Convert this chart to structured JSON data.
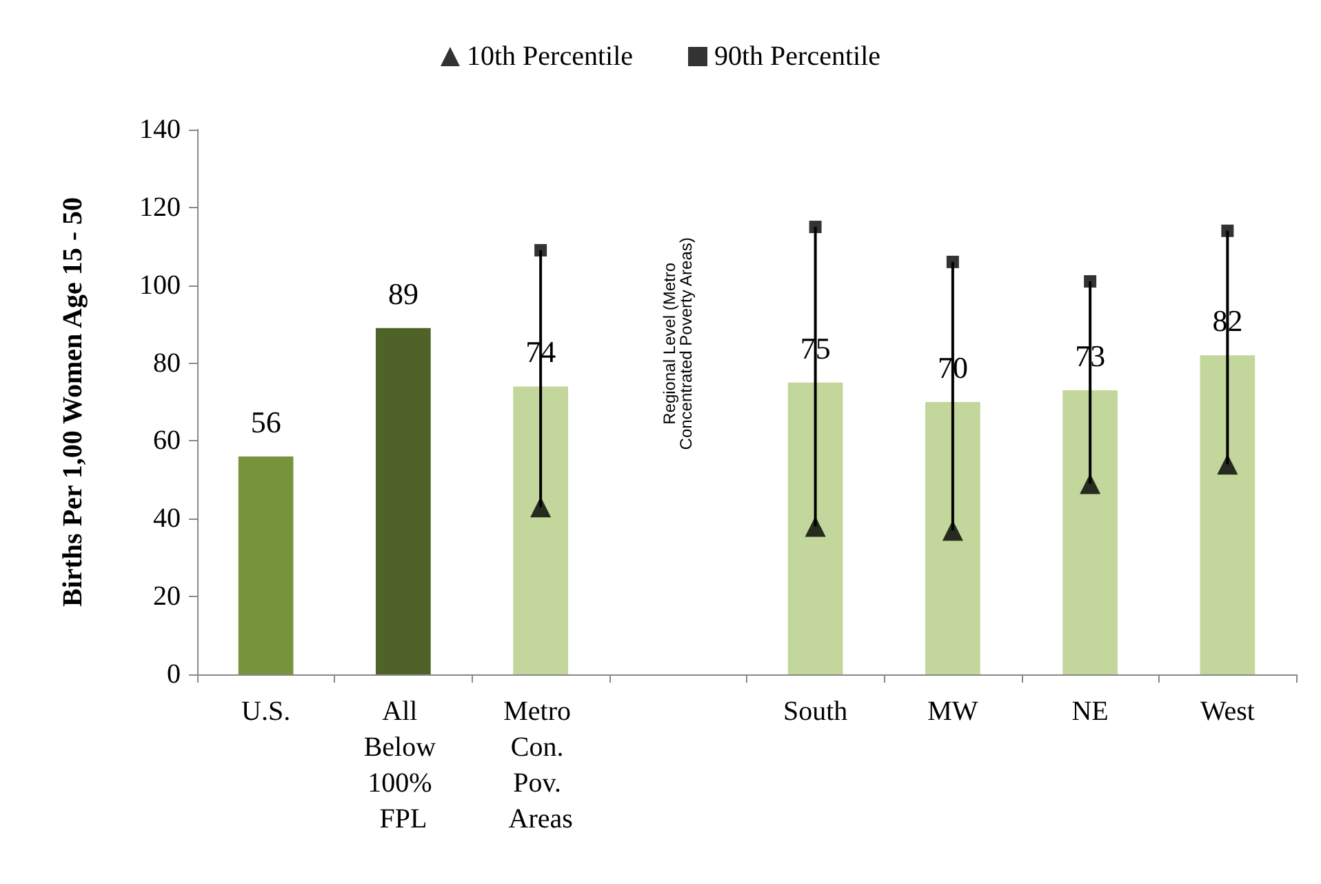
{
  "chart_data": {
    "type": "bar",
    "ylabel": "Births Per 1,00 Women Age 15 - 50",
    "categories": [
      "U.S.",
      "All Below 100% FPL",
      "Metro Con. Pov. Areas",
      null,
      "South",
      "MW",
      "NE",
      "West"
    ],
    "series": [
      {
        "colors": [
          "#77933c",
          "#4f6228",
          "#c3d69b",
          "#c3d69b",
          "#c3d69b",
          "#c3d69b",
          "#c3d69b",
          "#c3d69b"
        ],
        "values": [
          56,
          89,
          74,
          null,
          75,
          70,
          73,
          82
        ],
        "value_labels": [
          "56",
          "89",
          "74",
          null,
          "75",
          "70",
          "73",
          "82"
        ]
      },
      {
        "type": "scatter",
        "name": "10th Percentile",
        "color": "#000000",
        "marker": "triangle",
        "values": [
          null,
          null,
          43,
          null,
          38,
          37,
          49,
          54
        ]
      },
      {
        "type": "scatter",
        "name": "90th Percentile",
        "color": "#000000",
        "marker": "square",
        "values": [
          null,
          null,
          109,
          null,
          115,
          106,
          101,
          114
        ]
      }
    ],
    "annotations": [
      "Regional Level (Metro\nConcentrated Poverty Areas)"
    ],
    "ylim": [
      0,
      140
    ],
    "yticks": [
      0,
      20,
      40,
      60,
      80,
      100,
      120,
      140
    ],
    "grid": false,
    "legend": "top"
  }
}
